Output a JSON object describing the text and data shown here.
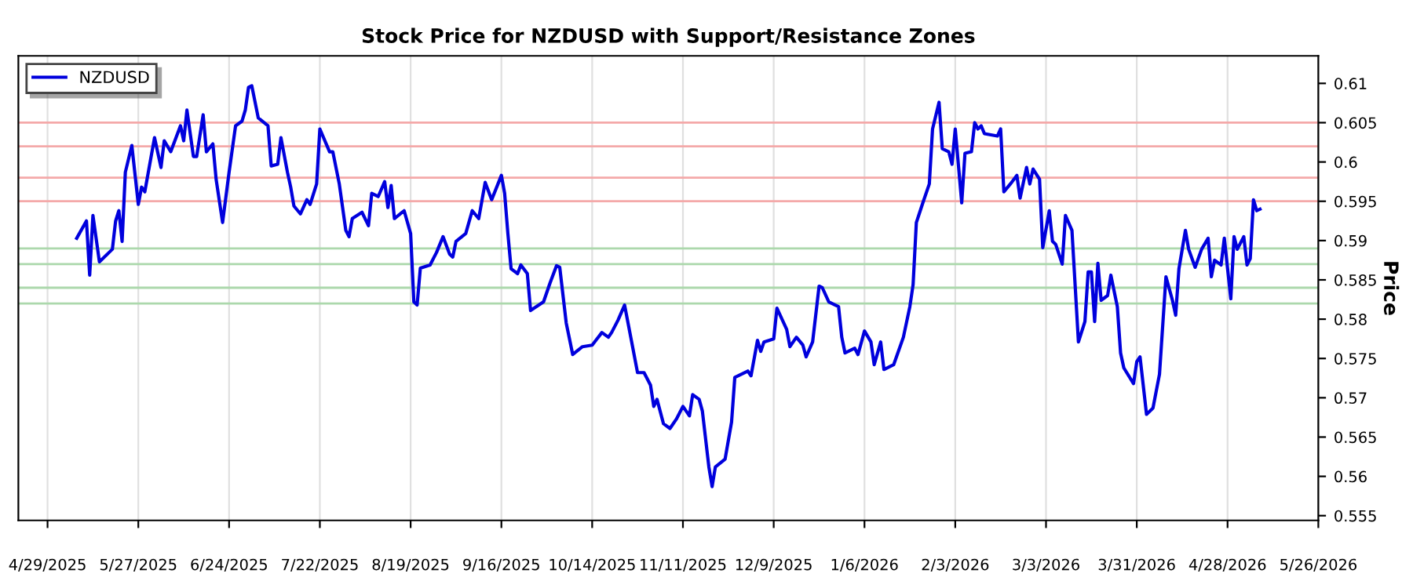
{
  "chart_data": {
    "type": "line",
    "title": "Stock Price for NZDUSD with Support/Resistance Zones",
    "ylabel": "Price",
    "x": [
      "2025-05-08",
      "2025-05-11",
      "2025-05-12",
      "2025-05-13",
      "2025-05-15",
      "2025-05-19",
      "2025-05-20",
      "2025-05-21",
      "2025-05-22",
      "2025-05-23",
      "2025-05-25",
      "2025-05-27",
      "2025-05-28",
      "2025-05-29",
      "2025-06-01",
      "2025-06-03",
      "2025-06-04",
      "2025-06-06",
      "2025-06-09",
      "2025-06-10",
      "2025-06-11",
      "2025-06-13",
      "2025-06-14",
      "2025-06-16",
      "2025-06-17",
      "2025-06-19",
      "2025-06-20",
      "2025-06-22",
      "2025-06-24",
      "2025-06-26",
      "2025-06-28",
      "2025-06-29",
      "2025-06-30",
      "2025-07-01",
      "2025-07-03",
      "2025-07-06",
      "2025-07-07",
      "2025-07-09",
      "2025-07-10",
      "2025-07-12",
      "2025-07-13",
      "2025-07-14",
      "2025-07-16",
      "2025-07-18",
      "2025-07-19",
      "2025-07-21",
      "2025-07-22",
      "2025-07-25",
      "2025-07-26",
      "2025-07-28",
      "2025-07-30",
      "2025-07-31",
      "2025-08-01",
      "2025-08-04",
      "2025-08-06",
      "2025-08-07",
      "2025-08-09",
      "2025-08-11",
      "2025-08-12",
      "2025-08-13",
      "2025-08-14",
      "2025-08-17",
      "2025-08-19",
      "2025-08-20",
      "2025-08-21",
      "2025-08-22",
      "2025-08-25",
      "2025-08-27",
      "2025-08-29",
      "2025-08-31",
      "2025-09-01",
      "2025-09-02",
      "2025-09-05",
      "2025-09-07",
      "2025-09-09",
      "2025-09-11",
      "2025-09-13",
      "2025-09-16",
      "2025-09-17",
      "2025-09-18",
      "2025-09-19",
      "2025-09-21",
      "2025-09-22",
      "2025-09-24",
      "2025-09-25",
      "2025-09-29",
      "2025-10-01",
      "2025-10-03",
      "2025-10-04",
      "2025-10-06",
      "2025-10-08",
      "2025-10-11",
      "2025-10-14",
      "2025-10-17",
      "2025-10-19",
      "2025-10-20",
      "2025-10-22",
      "2025-10-24",
      "2025-10-26",
      "2025-10-28",
      "2025-10-30",
      "2025-11-01",
      "2025-11-02",
      "2025-11-03",
      "2025-11-05",
      "2025-11-07",
      "2025-11-09",
      "2025-11-10",
      "2025-11-11",
      "2025-11-13",
      "2025-11-14",
      "2025-11-16",
      "2025-11-17",
      "2025-11-19",
      "2025-11-20",
      "2025-11-21",
      "2025-11-24",
      "2025-11-26",
      "2025-11-27",
      "2025-12-01",
      "2025-12-02",
      "2025-12-04",
      "2025-12-05",
      "2025-12-06",
      "2025-12-09",
      "2025-12-10",
      "2025-12-13",
      "2025-12-14",
      "2025-12-16",
      "2025-12-18",
      "2025-12-19",
      "2025-12-21",
      "2025-12-23",
      "2025-12-24",
      "2025-12-26",
      "2025-12-29",
      "2025-12-30",
      "2025-12-31",
      "2026-01-03",
      "2026-01-04",
      "2026-01-06",
      "2026-01-08",
      "2026-01-09",
      "2026-01-11",
      "2026-01-12",
      "2026-01-15",
      "2026-01-18",
      "2026-01-20",
      "2026-01-21",
      "2026-01-22",
      "2026-01-24",
      "2026-01-26",
      "2026-01-27",
      "2026-01-29",
      "2026-01-30",
      "2026-02-01",
      "2026-02-02",
      "2026-02-03",
      "2026-02-05",
      "2026-02-06",
      "2026-02-08",
      "2026-02-09",
      "2026-02-10",
      "2026-02-11",
      "2026-02-12",
      "2026-02-16",
      "2026-02-17",
      "2026-02-18",
      "2026-02-20",
      "2026-02-22",
      "2026-02-23",
      "2026-02-25",
      "2026-02-26",
      "2026-02-27",
      "2026-03-01",
      "2026-03-02",
      "2026-03-04",
      "2026-03-05",
      "2026-03-06",
      "2026-03-08",
      "2026-03-09",
      "2026-03-11",
      "2026-03-13",
      "2026-03-15",
      "2026-03-16",
      "2026-03-17",
      "2026-03-18",
      "2026-03-19",
      "2026-03-20",
      "2026-03-22",
      "2026-03-23",
      "2026-03-25",
      "2026-03-26",
      "2026-03-27",
      "2026-03-30",
      "2026-03-31",
      "2026-04-01",
      "2026-04-03",
      "2026-04-05",
      "2026-04-07",
      "2026-04-09",
      "2026-04-11",
      "2026-04-12",
      "2026-04-13",
      "2026-04-15",
      "2026-04-16",
      "2026-04-18",
      "2026-04-20",
      "2026-04-22",
      "2026-04-23",
      "2026-04-24",
      "2026-04-26",
      "2026-04-27",
      "2026-04-29",
      "2026-04-30",
      "2026-05-01",
      "2026-05-03",
      "2026-05-04",
      "2026-05-05",
      "2026-05-06",
      "2026-05-07",
      "2026-05-08"
    ],
    "series": [
      {
        "name": "NZDUSD",
        "color": "#0000dd",
        "values": [
          0.5903,
          0.5925,
          0.5856,
          0.5932,
          0.5873,
          0.5889,
          0.5925,
          0.5938,
          0.5899,
          0.5987,
          0.6021,
          0.5946,
          0.5968,
          0.5962,
          0.6031,
          0.5993,
          0.6027,
          0.6013,
          0.6046,
          0.6027,
          0.6066,
          0.6007,
          0.6007,
          0.606,
          0.6013,
          0.6023,
          0.5978,
          0.5923,
          0.5987,
          0.6046,
          0.6052,
          0.6066,
          0.6095,
          0.6097,
          0.6056,
          0.6046,
          0.5995,
          0.5997,
          0.6031,
          0.5987,
          0.5968,
          0.5944,
          0.5934,
          0.5952,
          0.5946,
          0.5972,
          0.6042,
          0.6013,
          0.6013,
          0.5972,
          0.5913,
          0.5905,
          0.5928,
          0.5936,
          0.5919,
          0.596,
          0.5956,
          0.5975,
          0.5942,
          0.597,
          0.5928,
          0.5938,
          0.5909,
          0.5822,
          0.5818,
          0.5865,
          0.5869,
          0.5885,
          0.5905,
          0.5883,
          0.5879,
          0.5899,
          0.5909,
          0.5938,
          0.5928,
          0.5974,
          0.5952,
          0.5983,
          0.596,
          0.5909,
          0.5864,
          0.5858,
          0.5869,
          0.5858,
          0.5811,
          0.5822,
          0.5846,
          0.5868,
          0.5866,
          0.5795,
          0.5755,
          0.5765,
          0.5767,
          0.5783,
          0.5777,
          0.5783,
          0.5799,
          0.5818,
          0.5775,
          0.5732,
          0.5732,
          0.5716,
          0.5689,
          0.5698,
          0.5667,
          0.5661,
          0.5673,
          0.5681,
          0.5689,
          0.5677,
          0.5704,
          0.5698,
          0.5683,
          0.5612,
          0.5587,
          0.5612,
          0.5622,
          0.5669,
          0.5726,
          0.5734,
          0.5728,
          0.5773,
          0.5759,
          0.5771,
          0.5775,
          0.5814,
          0.5787,
          0.5765,
          0.5777,
          0.5767,
          0.5752,
          0.5771,
          0.5842,
          0.584,
          0.5822,
          0.5816,
          0.5777,
          0.5757,
          0.5763,
          0.5755,
          0.5785,
          0.5771,
          0.5742,
          0.5771,
          0.5736,
          0.5742,
          0.5777,
          0.5816,
          0.5844,
          0.5923,
          0.5948,
          0.5972,
          0.6042,
          0.6076,
          0.6017,
          0.6013,
          0.5997,
          0.6042,
          0.5948,
          0.6011,
          0.6013,
          0.605,
          0.6042,
          0.6046,
          0.6036,
          0.6033,
          0.6042,
          0.5962,
          0.5972,
          0.5983,
          0.5954,
          0.5993,
          0.5972,
          0.5991,
          0.5978,
          0.5891,
          0.5938,
          0.5899,
          0.5895,
          0.587,
          0.5932,
          0.5913,
          0.5771,
          0.5797,
          0.586,
          0.586,
          0.5797,
          0.5871,
          0.5824,
          0.583,
          0.5856,
          0.5816,
          0.5757,
          0.5738,
          0.5718,
          0.5746,
          0.5752,
          0.5679,
          0.5687,
          0.573,
          0.5854,
          0.5824,
          0.5805,
          0.5864,
          0.5913,
          0.5889,
          0.5866,
          0.5889,
          0.5903,
          0.5854,
          0.5875,
          0.5869,
          0.5903,
          0.5826,
          0.5905,
          0.5889,
          0.5905,
          0.5869,
          0.5877,
          0.5952,
          0.5938,
          0.594
        ]
      }
    ],
    "ref_lines": [
      {
        "axis": "y",
        "value": 0.605,
        "color": "#f4a9a9"
      },
      {
        "axis": "y",
        "value": 0.602,
        "color": "#f4a9a9"
      },
      {
        "axis": "y",
        "value": 0.598,
        "color": "#f4a9a9"
      },
      {
        "axis": "y",
        "value": 0.595,
        "color": "#f4a9a9"
      },
      {
        "axis": "y",
        "value": 0.589,
        "color": "#acd8ac"
      },
      {
        "axis": "y",
        "value": 0.587,
        "color": "#acd8ac"
      },
      {
        "axis": "y",
        "value": 0.584,
        "color": "#acd8ac"
      },
      {
        "axis": "y",
        "value": 0.582,
        "color": "#acd8ac"
      }
    ],
    "xlim": [
      "2025-04-20",
      "2026-05-26"
    ],
    "xticks": [
      {
        "value": "2025-04-29",
        "label": "4/29/2025"
      },
      {
        "value": "2025-05-27",
        "label": "5/27/2025"
      },
      {
        "value": "2025-06-24",
        "label": "6/24/2025"
      },
      {
        "value": "2025-07-22",
        "label": "7/22/2025"
      },
      {
        "value": "2025-08-19",
        "label": "8/19/2025"
      },
      {
        "value": "2025-09-16",
        "label": "9/16/2025"
      },
      {
        "value": "2025-10-14",
        "label": "10/14/2025"
      },
      {
        "value": "2025-11-11",
        "label": "11/11/2025"
      },
      {
        "value": "2025-12-09",
        "label": "12/9/2025"
      },
      {
        "value": "2026-01-06",
        "label": "1/6/2026"
      },
      {
        "value": "2026-02-03",
        "label": "2/3/2026"
      },
      {
        "value": "2026-03-03",
        "label": "3/3/2026"
      },
      {
        "value": "2026-03-31",
        "label": "3/31/2026"
      },
      {
        "value": "2026-04-28",
        "label": "4/28/2026"
      },
      {
        "value": "2026-05-26",
        "label": "5/26/2026"
      }
    ],
    "ylim": [
      0.5544,
      0.6135
    ],
    "yticks": [
      0.555,
      0.56,
      0.565,
      0.57,
      0.575,
      0.58,
      0.585,
      0.59,
      0.595,
      0.6,
      0.605,
      0.61
    ],
    "grid": "x",
    "legend": "top left",
    "line_style": "solid",
    "marker": "none"
  }
}
